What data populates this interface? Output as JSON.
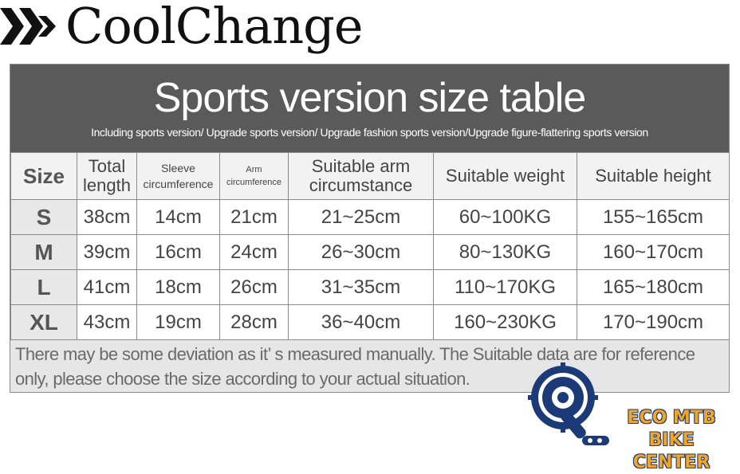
{
  "brand": {
    "name": "CoolChange",
    "logo_icon": "coolchange-logo-icon"
  },
  "header": {
    "title": "Sports version size table",
    "subtitle": "Including sports version/ Upgrade sports version/ Upgrade fashion sports version/Upgrade figure-flattering sports version"
  },
  "table": {
    "columns": [
      "Size",
      "Total length",
      "Sleeve circumference",
      "Arm circumference",
      "Suitable arm circumstance",
      "Suitable weight",
      "Suitable height"
    ],
    "rows": [
      [
        "S",
        "38cm",
        "14cm",
        "21cm",
        "21~25cm",
        "60~100KG",
        "155~165cm"
      ],
      [
        "M",
        "39cm",
        "16cm",
        "24cm",
        "26~30cm",
        "80~130KG",
        "160~170cm"
      ],
      [
        "L",
        "41cm",
        "18cm",
        "26cm",
        "31~35cm",
        "110~170KG",
        "165~180cm"
      ],
      [
        "XL",
        "43cm",
        "19cm",
        "28cm",
        "36~40cm",
        "160~230KG",
        "170~190cm"
      ]
    ]
  },
  "note": "There may be some deviation as it’ s measured manually. The Suitable data are for reference only, please choose the size according to your actual situation.",
  "watermark": {
    "line1": "ECO MTB BIKE",
    "line2": "CENTER",
    "icon": "bike-crank-logo-icon",
    "colors": {
      "blue": "#1c3a78",
      "orange": "#f2a623"
    }
  }
}
